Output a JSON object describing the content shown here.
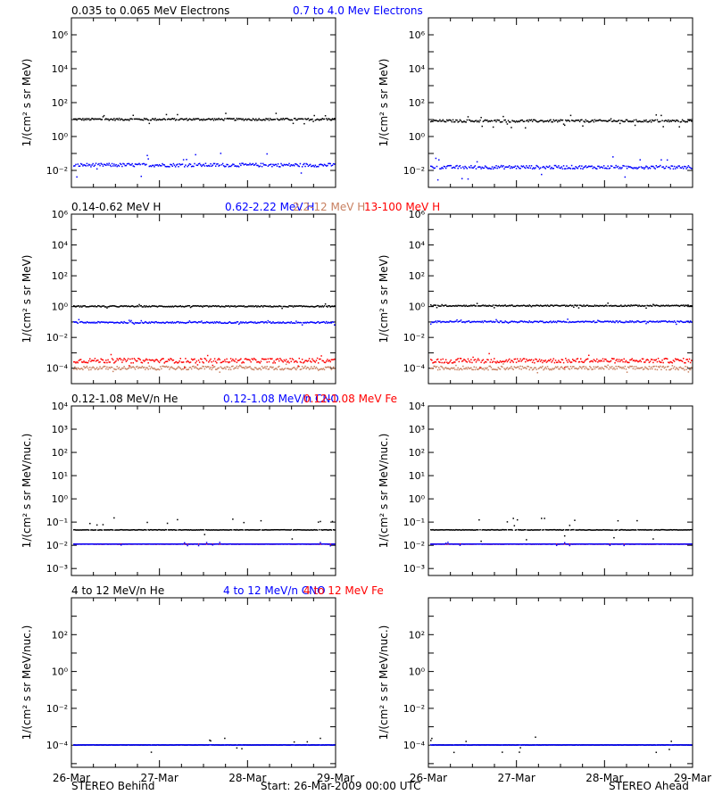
{
  "footer": {
    "left": "STEREO Behind",
    "center": "Start: 26-Mar-2009 00:00 UTC",
    "right": "STEREO Ahead"
  },
  "colors": {
    "black": "#000000",
    "blue": "#0000ff",
    "tan": "#c88060",
    "red": "#ff0000"
  },
  "chart_data": [
    {
      "type": "scatter",
      "row": 0,
      "ylabel": "1/(cm² s sr MeV)",
      "yscale": "log",
      "ylim_exp": [
        -3,
        7
      ],
      "yticks": [
        "10⁻²",
        "10⁰",
        "10²",
        "10⁴",
        "10⁶"
      ],
      "ytick_exps": [
        -2,
        0,
        2,
        4,
        6
      ],
      "xticks": [
        "26-Mar",
        "27-Mar",
        "28-Mar",
        "29-Mar"
      ],
      "legend": [
        {
          "label": "0.035 to 0.065 MeV Electrons",
          "color": "#000000"
        },
        {
          "label": "0.7 to 4.0 Mev Electrons",
          "color": "#0000ff"
        }
      ],
      "panels": [
        {
          "name": "STEREO Behind",
          "series": [
            {
              "color": "#000000",
              "level": 10,
              "spread": 0.06,
              "outlier": 0.25
            },
            {
              "color": "#0000ff",
              "level": 0.02,
              "spread": 0.1,
              "outlier": 0.5
            }
          ]
        },
        {
          "name": "STEREO Ahead",
          "series": [
            {
              "color": "#000000",
              "level": 8,
              "spread": 0.07,
              "outlier": 0.25
            },
            {
              "color": "#0000ff",
              "level": 0.015,
              "spread": 0.1,
              "outlier": 0.5
            }
          ]
        }
      ]
    },
    {
      "type": "scatter",
      "row": 1,
      "ylabel": "1/(cm² s sr MeV)",
      "yscale": "log",
      "ylim_exp": [
        -5,
        6
      ],
      "yticks": [
        "10⁻⁴",
        "10⁻²",
        "10⁰",
        "10²",
        "10⁴",
        "10⁶"
      ],
      "ytick_exps": [
        -4,
        -2,
        0,
        2,
        4,
        6
      ],
      "xticks": [
        "26-Mar",
        "27-Mar",
        "28-Mar",
        "29-Mar"
      ],
      "legend": [
        {
          "label": "0.14-0.62 MeV H",
          "color": "#000000"
        },
        {
          "label": "0.62-2.22 MeV H",
          "color": "#0000ff"
        },
        {
          "label": "2.2-12 MeV H",
          "color": "#c88060"
        },
        {
          "label": "13-100 MeV H",
          "color": "#ff0000"
        }
      ],
      "panels": [
        {
          "name": "STEREO Behind",
          "series": [
            {
              "color": "#000000",
              "level": 1,
              "spread": 0.04,
              "outlier": 0.1
            },
            {
              "color": "#0000ff",
              "level": 0.09,
              "spread": 0.05,
              "outlier": 0.1
            },
            {
              "color": "#c88060",
              "level": 0.0001,
              "spread": 0.12,
              "outlier": 0.2
            },
            {
              "color": "#ff0000",
              "level": 0.0003,
              "spread": 0.15,
              "outlier": 0.3
            }
          ]
        },
        {
          "name": "STEREO Ahead",
          "series": [
            {
              "color": "#000000",
              "level": 1.1,
              "spread": 0.04,
              "outlier": 0.1
            },
            {
              "color": "#0000ff",
              "level": 0.1,
              "spread": 0.05,
              "outlier": 0.1
            },
            {
              "color": "#c88060",
              "level": 0.0001,
              "spread": 0.12,
              "outlier": 0.2
            },
            {
              "color": "#ff0000",
              "level": 0.0003,
              "spread": 0.15,
              "outlier": 0.3
            }
          ]
        }
      ]
    },
    {
      "type": "scatter",
      "row": 2,
      "ylabel": "1/(cm² s sr MeV/nuc.)",
      "yscale": "log",
      "ylim_exp": [
        -3.3,
        4
      ],
      "yticks": [
        "10⁻³",
        "10⁻²",
        "10⁻¹",
        "10⁰",
        "10¹",
        "10²",
        "10³",
        "10⁴"
      ],
      "ytick_exps": [
        -3,
        -2,
        -1,
        0,
        1,
        2,
        3,
        4
      ],
      "xticks": [
        "26-Mar",
        "27-Mar",
        "28-Mar",
        "29-Mar"
      ],
      "legend": [
        {
          "label": "0.12-1.08 MeV/n He",
          "color": "#000000"
        },
        {
          "label": "0.12-1.08 MeV/n CNO",
          "color": "#0000ff"
        },
        {
          "label": "0.12-1.08 MeV Fe",
          "color": "#ff0000"
        }
      ],
      "panels": [
        {
          "name": "STEREO Behind",
          "series": [
            {
              "color": "#000000",
              "level": 0.045,
              "spread": 0.01,
              "outlier": 0.35,
              "baseline": true
            },
            {
              "color": "#ff0000",
              "level": 0.011,
              "spread": 0.005,
              "outlier": 0.0,
              "baseline": true
            },
            {
              "color": "#0000ff",
              "level": 0.011,
              "spread": 0.005,
              "outlier": 0.05,
              "baseline": true
            }
          ]
        },
        {
          "name": "STEREO Ahead",
          "series": [
            {
              "color": "#000000",
              "level": 0.045,
              "spread": 0.01,
              "outlier": 0.35,
              "baseline": true
            },
            {
              "color": "#ff0000",
              "level": 0.011,
              "spread": 0.005,
              "outlier": 0.0,
              "baseline": true
            },
            {
              "color": "#0000ff",
              "level": 0.011,
              "spread": 0.005,
              "outlier": 0.05,
              "baseline": true
            }
          ]
        }
      ]
    },
    {
      "type": "scatter",
      "row": 3,
      "ylabel": "1/(cm² s sr MeV/nuc.)",
      "yscale": "log",
      "ylim_exp": [
        -5.2,
        4
      ],
      "yticks": [
        "10⁻⁴",
        "10⁻²",
        "10⁰",
        "10²"
      ],
      "ytick_exps": [
        -4,
        -2,
        0,
        2
      ],
      "xticks": [
        "26-Mar",
        "27-Mar",
        "28-Mar",
        "29-Mar"
      ],
      "legend": [
        {
          "label": "4 to 12 MeV/n He",
          "color": "#000000"
        },
        {
          "label": "4 to 12 MeV/n CNO",
          "color": "#0000ff"
        },
        {
          "label": "4 to 12 MeV Fe",
          "color": "#ff0000"
        }
      ],
      "panels": [
        {
          "name": "STEREO Behind",
          "series": [
            {
              "color": "#000000",
              "level": 0.0001,
              "spread": 0.005,
              "outlier": 0.3,
              "baseline": true
            },
            {
              "color": "#0000ff",
              "level": 0.0001,
              "spread": 0.01,
              "outlier": 0.0,
              "baseline": true
            }
          ]
        },
        {
          "name": "STEREO Ahead",
          "series": [
            {
              "color": "#000000",
              "level": 0.0001,
              "spread": 0.005,
              "outlier": 0.3,
              "baseline": true
            },
            {
              "color": "#0000ff",
              "level": 0.0001,
              "spread": 0.01,
              "outlier": 0.0,
              "baseline": true
            }
          ]
        }
      ]
    }
  ]
}
